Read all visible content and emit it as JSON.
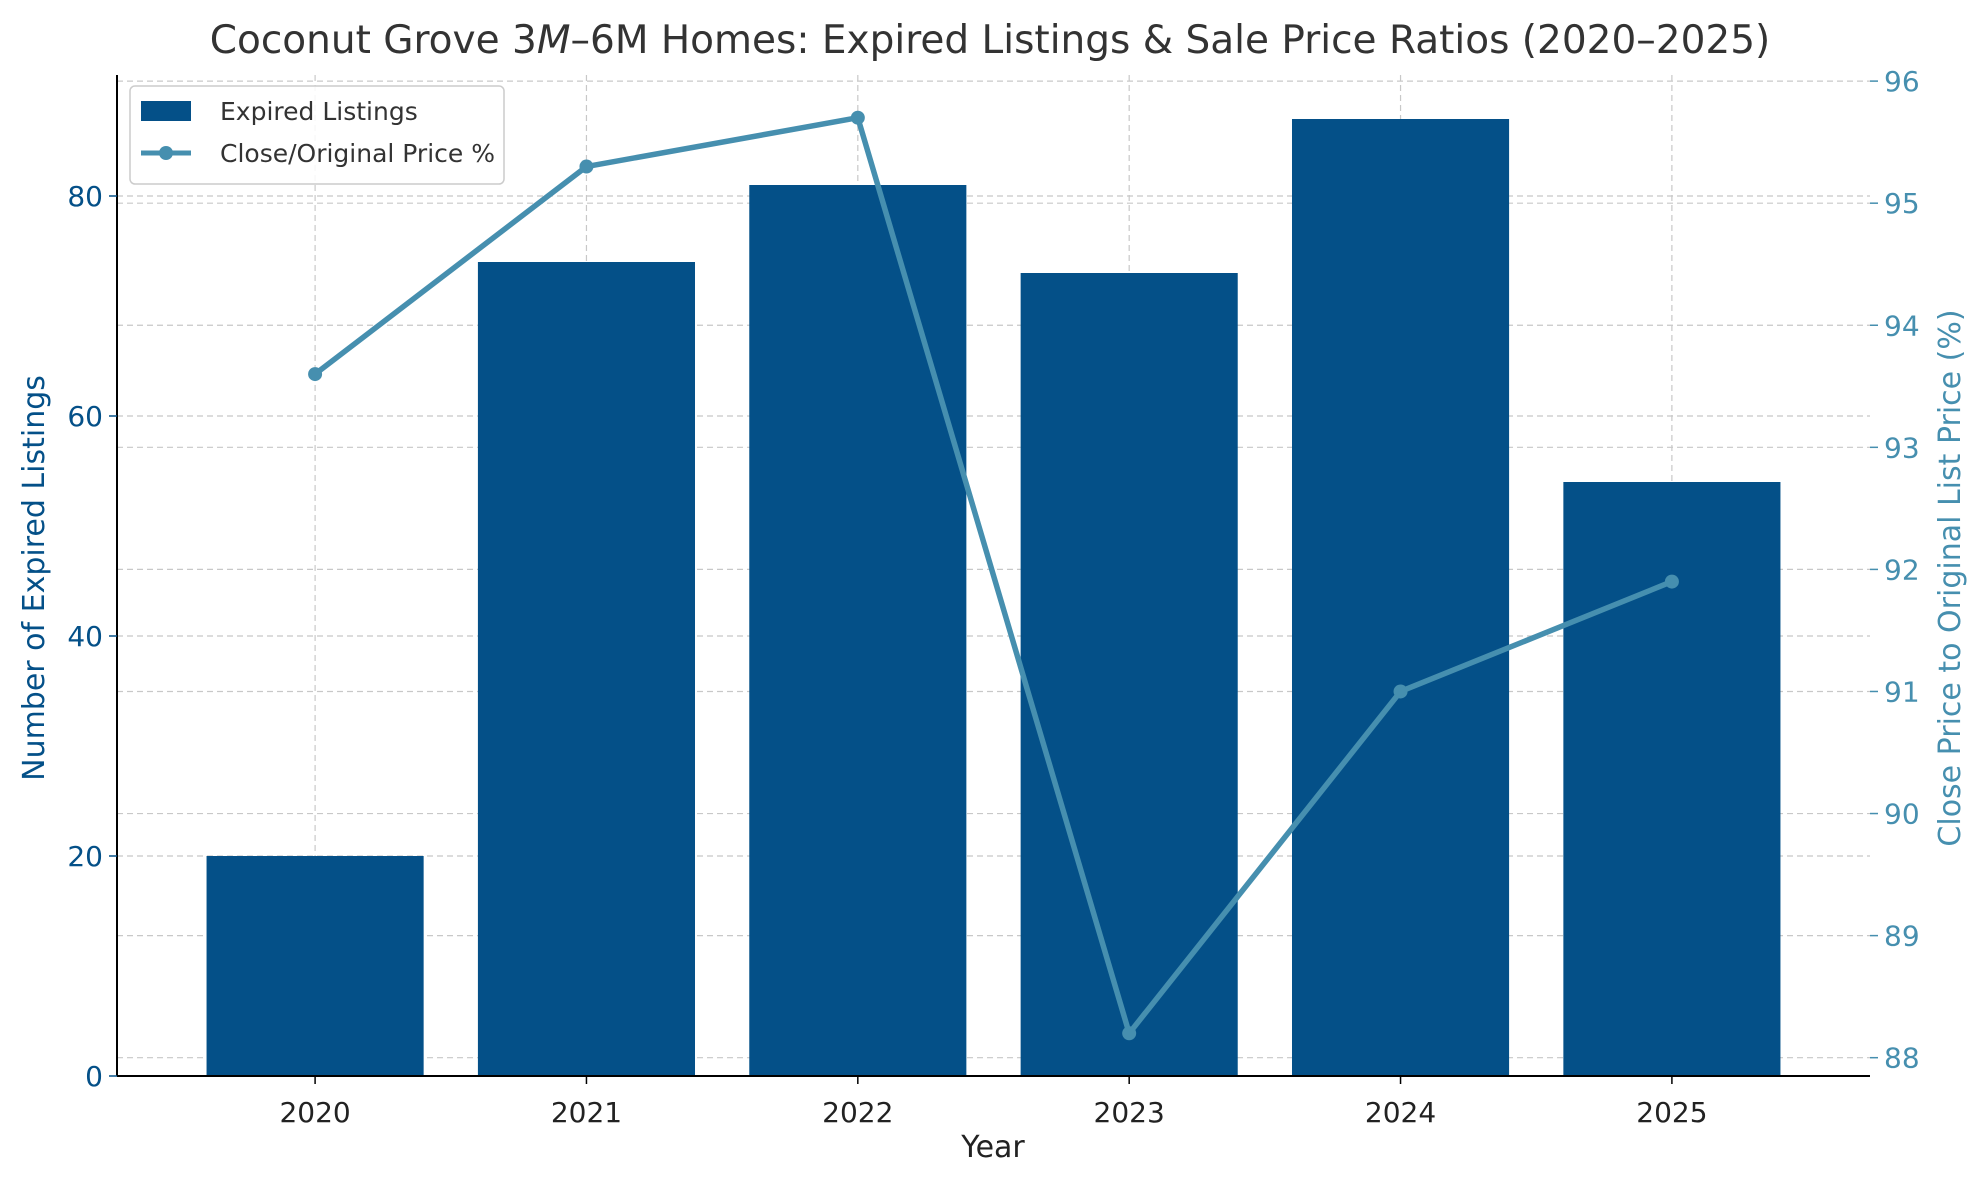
{
  "chart_data": {
    "type": "bar",
    "title": "Coconut Grove 3M–6M Homes: Expired Listings & Sale Price Ratios (2020–2025)",
    "title_parts": {
      "pre": "Coconut Grove 3",
      "italic": "M",
      "post": "–6M Homes: Expired Listings & Sale Price Ratios (2020–2025)"
    },
    "xlabel": "Year",
    "ylabel": "Number of Expired Listings",
    "y2label": "Close Price to Original List Price (%)",
    "categories": [
      "2020",
      "2021",
      "2022",
      "2023",
      "2024",
      "2025"
    ],
    "series": [
      {
        "name": "Expired Listings",
        "type": "bar",
        "axis": "left",
        "values": [
          20,
          74,
          81,
          73,
          87,
          54
        ],
        "color": "#045088"
      },
      {
        "name": "Close/Original Price %",
        "type": "line",
        "axis": "right",
        "values": [
          93.6,
          95.3,
          95.7,
          88.2,
          91.0,
          91.9
        ],
        "color": "#468faf"
      }
    ],
    "ylim": [
      0,
      91
    ],
    "yticks": [
      0,
      20,
      40,
      60,
      80
    ],
    "y2lim": [
      87.85,
      96.05
    ],
    "y2ticks": [
      88,
      89,
      90,
      91,
      92,
      93,
      94,
      95,
      96
    ],
    "grid": true,
    "legend": "top-left"
  }
}
